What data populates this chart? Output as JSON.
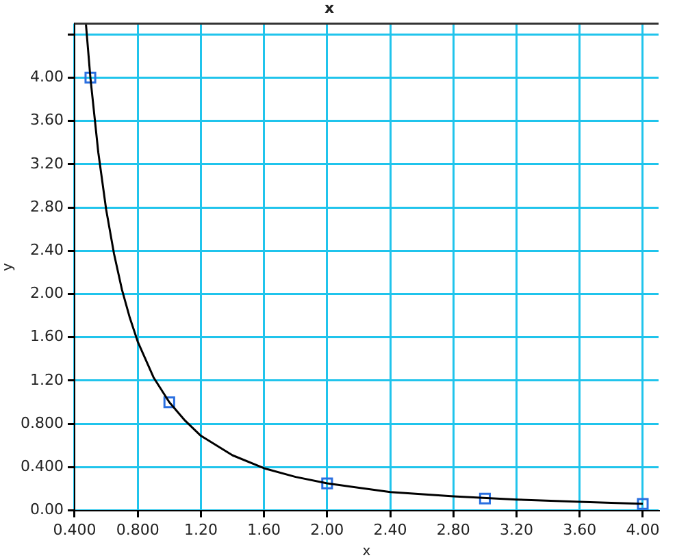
{
  "chart_data": {
    "type": "line",
    "title": "x",
    "xlabel": "x",
    "ylabel": "y",
    "xlim": [
      0.4,
      4.1
    ],
    "xticks": [
      {
        "value": 0.4,
        "label": "0.400"
      },
      {
        "value": 0.8,
        "label": "0.800"
      },
      {
        "value": 1.2,
        "label": "1.20"
      },
      {
        "value": 1.6,
        "label": "1.60"
      },
      {
        "value": 2,
        "label": "2.00"
      },
      {
        "value": 2.4,
        "label": "2.40"
      },
      {
        "value": 2.8,
        "label": "2.80"
      },
      {
        "value": 3.2,
        "label": "3.20"
      },
      {
        "value": 3.6,
        "label": "3.60"
      },
      {
        "value": 4,
        "label": "4.00"
      }
    ],
    "ylim": [
      0,
      4.5
    ],
    "yticks": [
      {
        "value": 0,
        "label": "0.00"
      },
      {
        "value": 0.4,
        "label": "0.400"
      },
      {
        "value": 0.8,
        "label": "0.800"
      },
      {
        "value": 1.2,
        "label": "1.20"
      },
      {
        "value": 1.6,
        "label": "1.60"
      },
      {
        "value": 2,
        "label": "2.00"
      },
      {
        "value": 2.4,
        "label": "2.40"
      },
      {
        "value": 2.8,
        "label": "2.80"
      },
      {
        "value": 3.2,
        "label": "3.20"
      },
      {
        "value": 3.6,
        "label": "3.60"
      },
      {
        "value": 4,
        "label": "4.00"
      },
      {
        "value": 4.4,
        "label": null
      }
    ],
    "grid": true,
    "legend": false,
    "series": [
      {
        "type": "line",
        "color": "#000000",
        "marker": "none",
        "x": [
          0.472,
          0.5,
          0.55,
          0.6,
          0.65,
          0.7,
          0.75,
          0.8,
          0.9,
          1.0,
          1.1,
          1.2,
          1.4,
          1.6,
          1.8,
          2.0,
          2.4,
          2.8,
          3.2,
          3.6,
          4.0
        ],
        "values": [
          4.49,
          4.0,
          3.31,
          2.78,
          2.37,
          2.04,
          1.78,
          1.56,
          1.23,
          1.0,
          0.83,
          0.69,
          0.51,
          0.39,
          0.31,
          0.25,
          0.17,
          0.13,
          0.1,
          0.08,
          0.06
        ]
      },
      {
        "type": "scatter",
        "color": "#2a6fe0",
        "marker": "square",
        "x": [
          0.5,
          1.0,
          2.0,
          3.0,
          4.0
        ],
        "values": [
          4.0,
          1.0,
          0.25,
          0.11,
          0.06
        ]
      }
    ]
  }
}
